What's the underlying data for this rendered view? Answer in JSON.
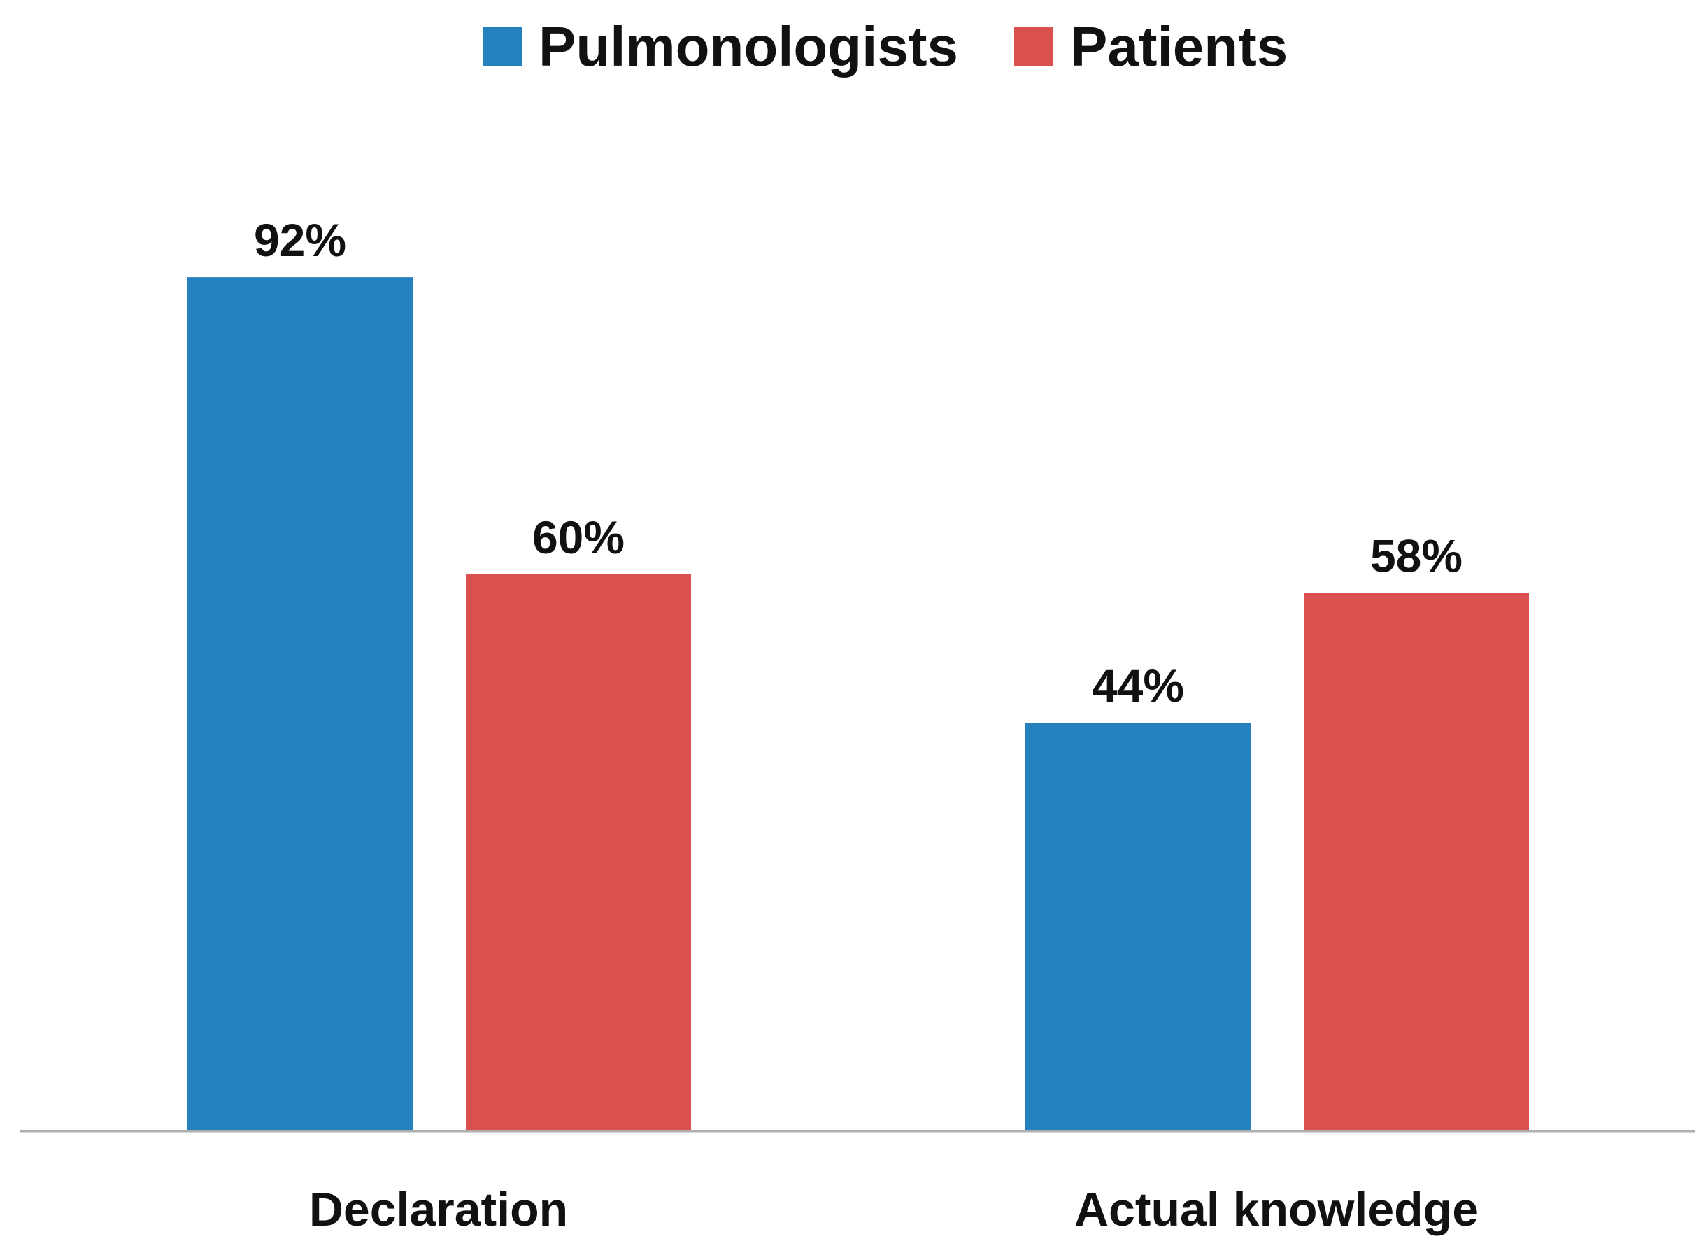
{
  "chart_data": {
    "type": "bar",
    "categories": [
      "Declaration",
      "Actual knowledge"
    ],
    "series": [
      {
        "name": "Pulmonologists",
        "values": [
          92,
          44
        ],
        "labels": [
          "92%",
          "44%"
        ],
        "color": "#2580BF"
      },
      {
        "name": "Patients",
        "values": [
          60,
          58
        ],
        "labels": [
          "60%",
          "58%"
        ],
        "color": "#DB504E"
      }
    ],
    "ylim": [
      0,
      100
    ],
    "grid": false,
    "legend_position": "top-center",
    "axis_line_color": "#AFAFAF"
  }
}
